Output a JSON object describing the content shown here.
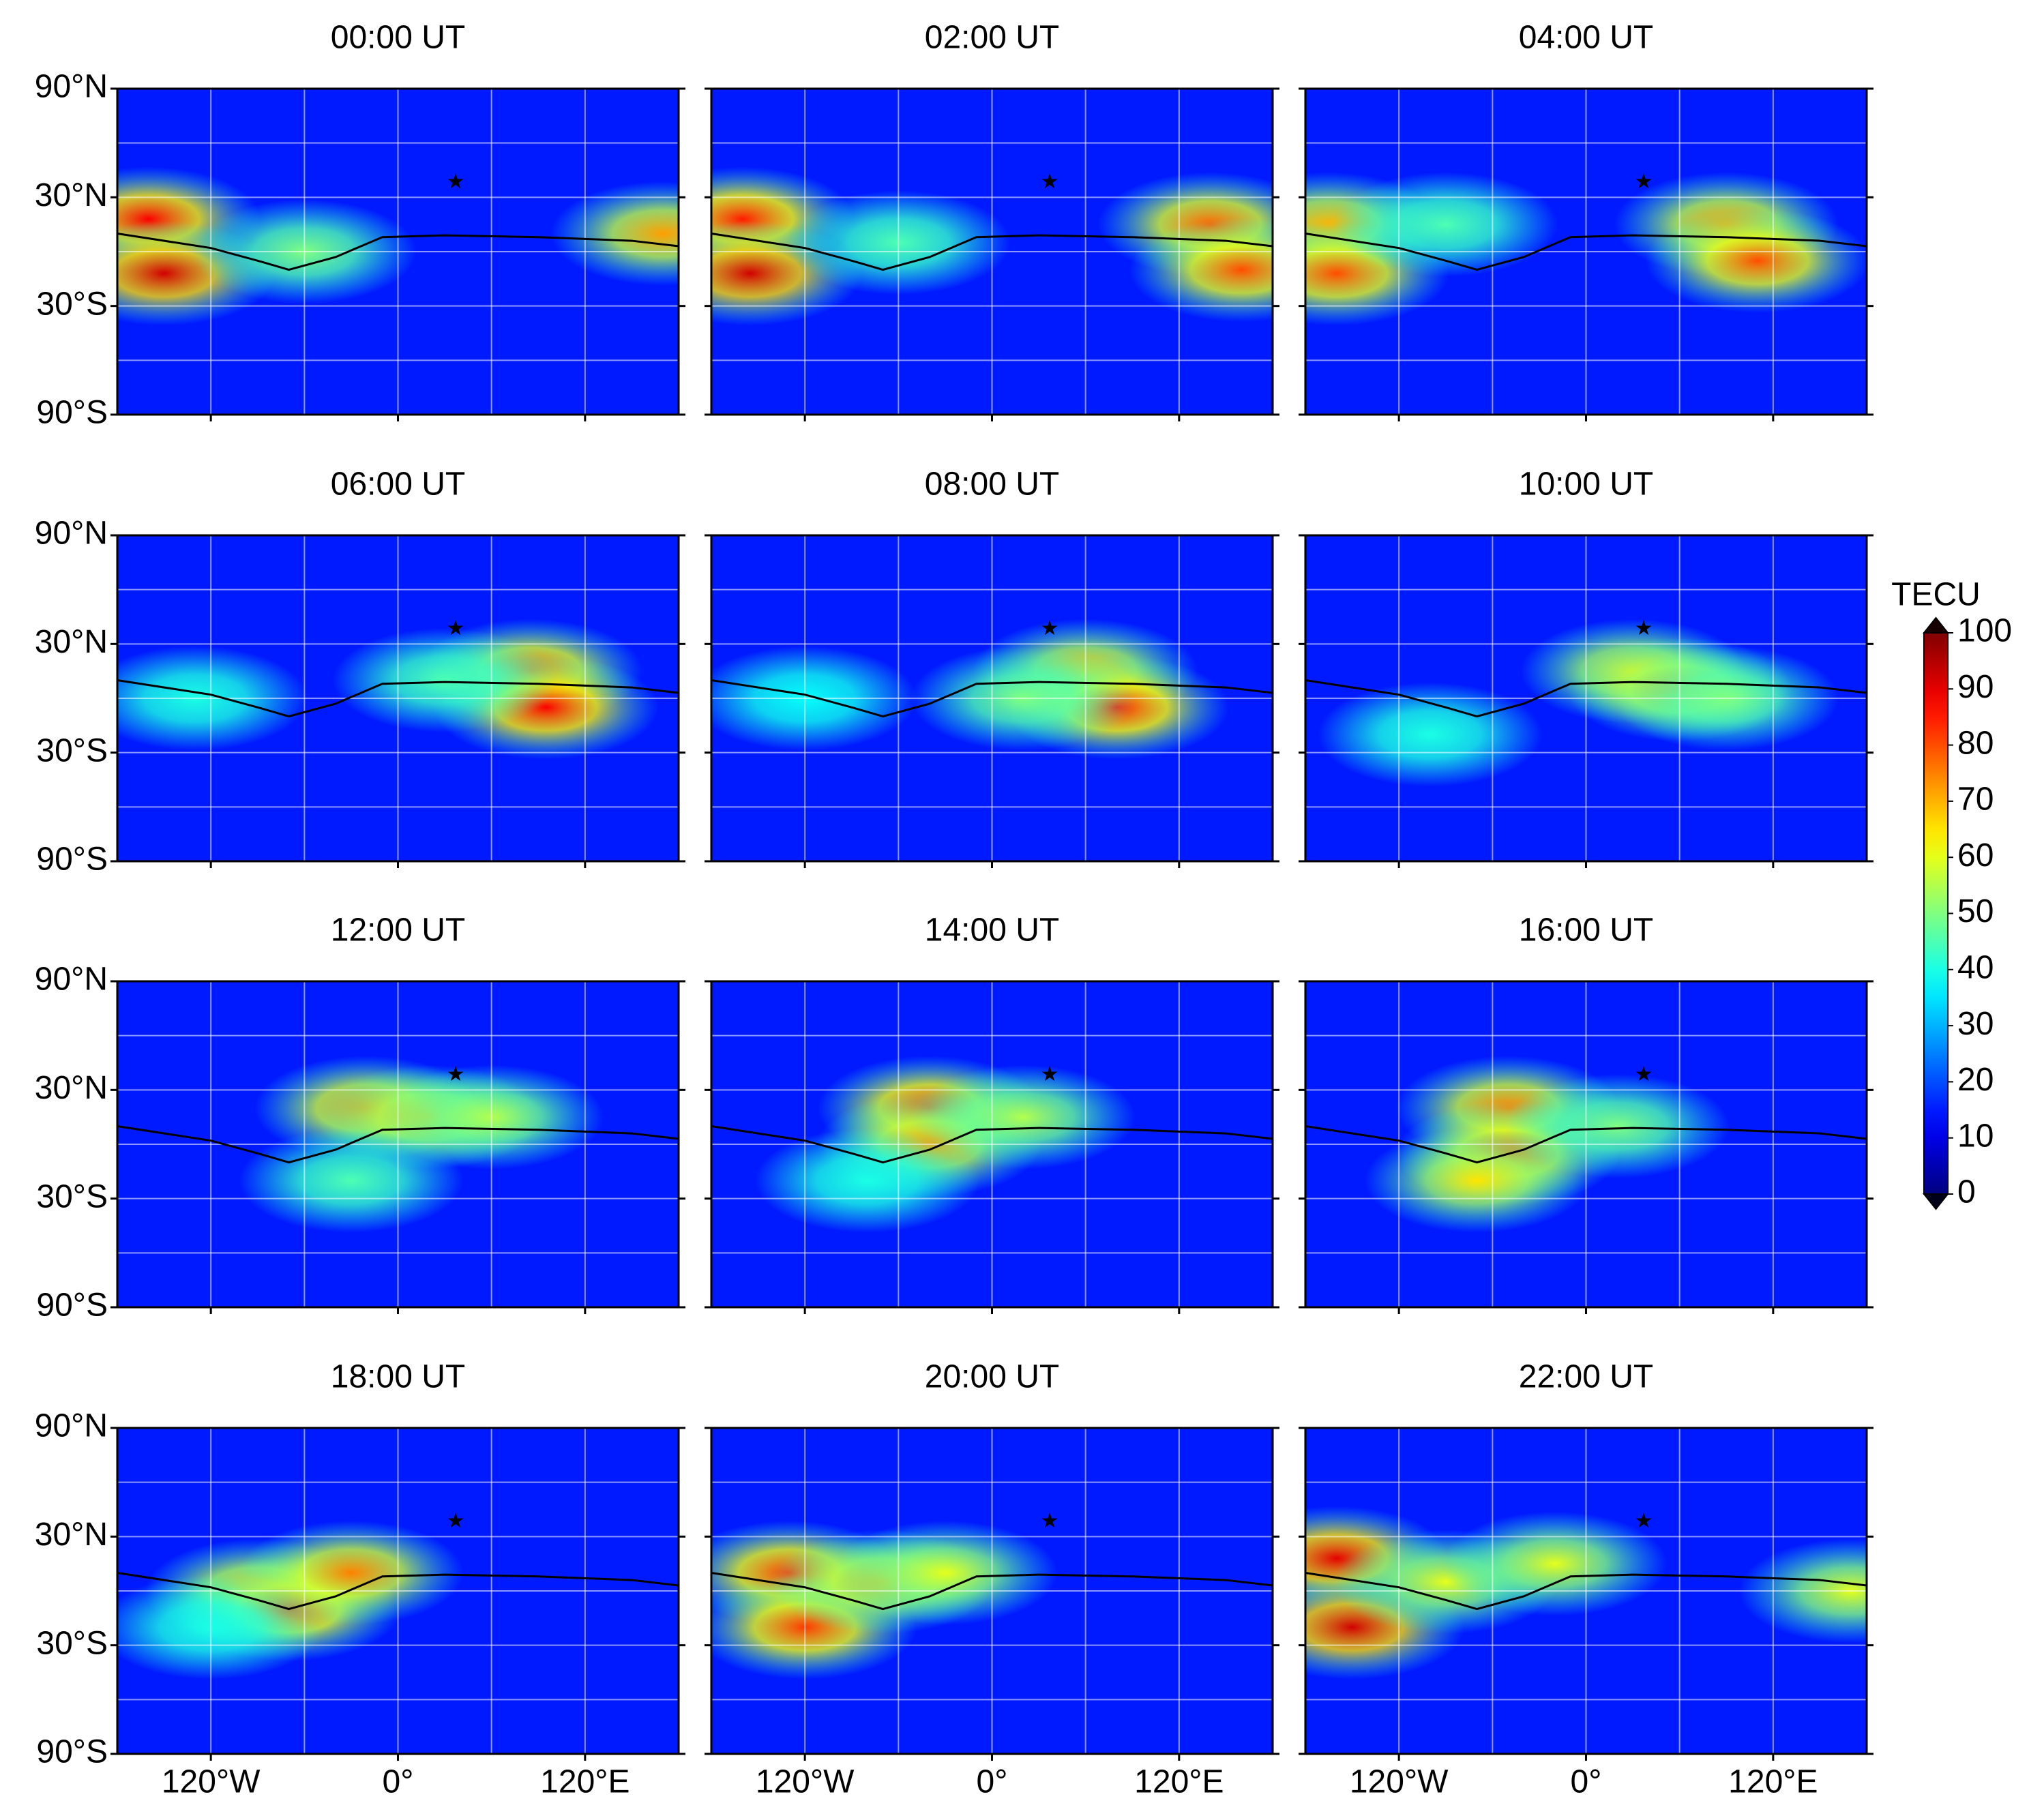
{
  "chart_data": {
    "type": "heatmap-grid",
    "colormap": "jet",
    "background_value": 15,
    "xlim": [
      -180,
      180
    ],
    "ylim": [
      -90,
      90
    ],
    "xticks": [
      {
        "value": -120,
        "label": "120°W"
      },
      {
        "value": 0,
        "label": "0°"
      },
      {
        "value": 120,
        "label": "120°E"
      }
    ],
    "yticks": [
      {
        "value": 90,
        "label": "90°N"
      },
      {
        "value": 30,
        "label": "30°N"
      },
      {
        "value": -30,
        "label": "30°S"
      },
      {
        "value": -90,
        "label": "90°S"
      }
    ],
    "grid": true,
    "xgrid": [
      -120,
      -60,
      0,
      60,
      120
    ],
    "ygrid": [
      -60,
      -30,
      0,
      30,
      60
    ],
    "marker": {
      "x": 37,
      "y": 38,
      "color": "#ff2020"
    },
    "colorbar": {
      "label": "TECU",
      "lim": [
        0,
        100
      ],
      "ticks": [
        0,
        10,
        20,
        30,
        40,
        50,
        60,
        70,
        80,
        90,
        100
      ]
    },
    "panels": [
      {
        "title": "00:00 UT",
        "peaks": [
          {
            "x": -160,
            "y": 18,
            "value": 88
          },
          {
            "x": -150,
            "y": -12,
            "value": 92
          },
          {
            "x": -60,
            "y": 0,
            "value": 50
          },
          {
            "x": 170,
            "y": 10,
            "value": 72
          }
        ]
      },
      {
        "title": "02:00 UT",
        "peaks": [
          {
            "x": -160,
            "y": 18,
            "value": 85
          },
          {
            "x": -155,
            "y": -12,
            "value": 92
          },
          {
            "x": -60,
            "y": 5,
            "value": 45
          },
          {
            "x": 140,
            "y": 15,
            "value": 78
          },
          {
            "x": 160,
            "y": -10,
            "value": 80
          }
        ]
      },
      {
        "title": "04:00 UT",
        "peaks": [
          {
            "x": -165,
            "y": 15,
            "value": 70
          },
          {
            "x": -160,
            "y": -12,
            "value": 80
          },
          {
            "x": -90,
            "y": 15,
            "value": 45
          },
          {
            "x": 90,
            "y": 15,
            "value": 72
          },
          {
            "x": 110,
            "y": -5,
            "value": 80
          }
        ]
      },
      {
        "title": "06:00 UT",
        "peaks": [
          {
            "x": -130,
            "y": 0,
            "value": 40
          },
          {
            "x": 85,
            "y": 15,
            "value": 78
          },
          {
            "x": 95,
            "y": -5,
            "value": 88
          },
          {
            "x": 30,
            "y": 10,
            "value": 45
          }
        ]
      },
      {
        "title": "08:00 UT",
        "peaks": [
          {
            "x": 60,
            "y": 15,
            "value": 68
          },
          {
            "x": 80,
            "y": -5,
            "value": 85
          },
          {
            "x": -120,
            "y": 0,
            "value": 38
          },
          {
            "x": 20,
            "y": 0,
            "value": 50
          }
        ]
      },
      {
        "title": "10:00 UT",
        "peaks": [
          {
            "x": 30,
            "y": 15,
            "value": 65
          },
          {
            "x": 60,
            "y": 5,
            "value": 72
          },
          {
            "x": -100,
            "y": -20,
            "value": 40
          },
          {
            "x": 90,
            "y": 0,
            "value": 50
          }
        ]
      },
      {
        "title": "12:00 UT",
        "peaks": [
          {
            "x": -20,
            "y": 20,
            "value": 75
          },
          {
            "x": 20,
            "y": 15,
            "value": 68
          },
          {
            "x": 60,
            "y": 15,
            "value": 55
          },
          {
            "x": -30,
            "y": -20,
            "value": 45
          }
        ]
      },
      {
        "title": "14:00 UT",
        "peaks": [
          {
            "x": -40,
            "y": 20,
            "value": 82
          },
          {
            "x": -40,
            "y": 0,
            "value": 72
          },
          {
            "x": 20,
            "y": 15,
            "value": 55
          },
          {
            "x": -80,
            "y": -20,
            "value": 40
          }
        ]
      },
      {
        "title": "16:00 UT",
        "peaks": [
          {
            "x": -50,
            "y": 20,
            "value": 75
          },
          {
            "x": -50,
            "y": -5,
            "value": 80
          },
          {
            "x": -70,
            "y": -20,
            "value": 65
          },
          {
            "x": 20,
            "y": 10,
            "value": 50
          }
        ]
      },
      {
        "title": "18:00 UT",
        "peaks": [
          {
            "x": -90,
            "y": 0,
            "value": 72
          },
          {
            "x": -70,
            "y": -10,
            "value": 80
          },
          {
            "x": -30,
            "y": 10,
            "value": 75
          },
          {
            "x": -120,
            "y": -20,
            "value": 40
          }
        ]
      },
      {
        "title": "20:00 UT",
        "peaks": [
          {
            "x": -130,
            "y": 10,
            "value": 82
          },
          {
            "x": -120,
            "y": -20,
            "value": 82
          },
          {
            "x": -70,
            "y": 5,
            "value": 70
          },
          {
            "x": -30,
            "y": 10,
            "value": 60
          }
        ]
      },
      {
        "title": "22:00 UT",
        "peaks": [
          {
            "x": -160,
            "y": 18,
            "value": 90
          },
          {
            "x": -150,
            "y": -20,
            "value": 92
          },
          {
            "x": -90,
            "y": 5,
            "value": 60
          },
          {
            "x": -20,
            "y": 15,
            "value": 60
          },
          {
            "x": 170,
            "y": 0,
            "value": 60
          }
        ]
      }
    ]
  }
}
